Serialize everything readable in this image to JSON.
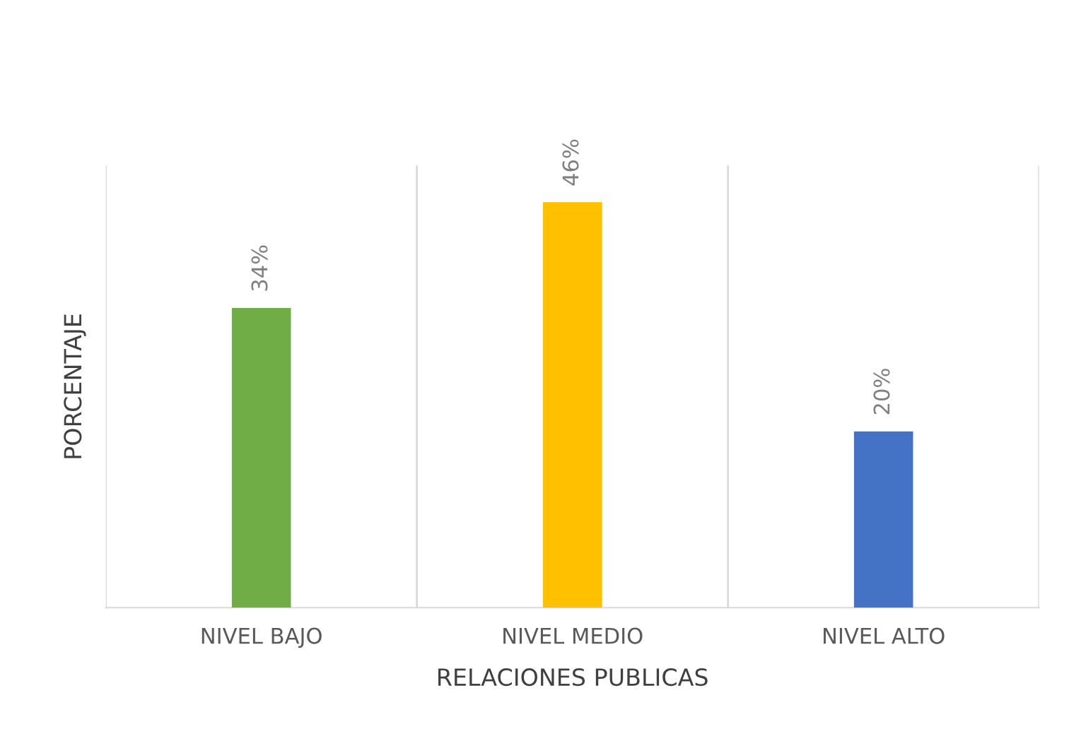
{
  "chart_data": {
    "type": "bar",
    "xlabel": "RELACIONES PUBLICAS",
    "ylabel": "PORCENTAJE",
    "categories": [
      "NIVEL BAJO",
      "NIVEL MEDIO",
      "NIVEL ALTO"
    ],
    "values": [
      34,
      46,
      20
    ],
    "colors": [
      "#70ad47",
      "#ffc000",
      "#4472c4"
    ],
    "value_labels": [
      "34%",
      "46%",
      "20%"
    ],
    "grid": "x",
    "tick_labels": "x",
    "legend": false
  }
}
